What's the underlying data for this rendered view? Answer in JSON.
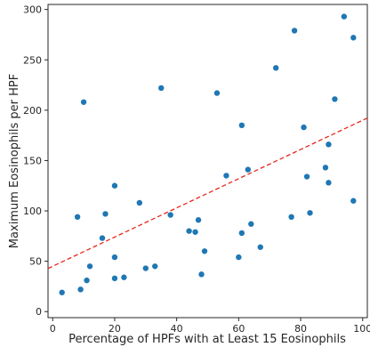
{
  "chart_data": {
    "type": "scatter",
    "title": "",
    "xlabel": "Percentage of HPFs with at Least 15 Eosinophils",
    "ylabel": "Maximum Eosinophils per HPF",
    "xlim": [
      -1.5,
      101.5
    ],
    "ylim": [
      -6,
      305
    ],
    "xticks": [
      0,
      20,
      40,
      60,
      80,
      100
    ],
    "yticks": [
      0,
      50,
      100,
      150,
      200,
      250,
      300
    ],
    "grid": false,
    "legend": null,
    "point_color": "#1f77b4",
    "trendline": {
      "slope": 1.45,
      "intercept": 45,
      "color": "#e8261b",
      "style": "dashed"
    },
    "points": [
      {
        "x": 3,
        "y": 19
      },
      {
        "x": 8,
        "y": 94
      },
      {
        "x": 9,
        "y": 22
      },
      {
        "x": 10,
        "y": 208
      },
      {
        "x": 11,
        "y": 31
      },
      {
        "x": 12,
        "y": 45
      },
      {
        "x": 16,
        "y": 73
      },
      {
        "x": 17,
        "y": 97
      },
      {
        "x": 20,
        "y": 33
      },
      {
        "x": 20,
        "y": 125
      },
      {
        "x": 20,
        "y": 54
      },
      {
        "x": 23,
        "y": 34
      },
      {
        "x": 28,
        "y": 108
      },
      {
        "x": 30,
        "y": 43
      },
      {
        "x": 33,
        "y": 45
      },
      {
        "x": 35,
        "y": 222
      },
      {
        "x": 38,
        "y": 96
      },
      {
        "x": 44,
        "y": 80
      },
      {
        "x": 46,
        "y": 79
      },
      {
        "x": 47,
        "y": 91
      },
      {
        "x": 48,
        "y": 37
      },
      {
        "x": 49,
        "y": 60
      },
      {
        "x": 53,
        "y": 217
      },
      {
        "x": 56,
        "y": 135
      },
      {
        "x": 60,
        "y": 54
      },
      {
        "x": 61,
        "y": 78
      },
      {
        "x": 61,
        "y": 185
      },
      {
        "x": 63,
        "y": 141
      },
      {
        "x": 64,
        "y": 87
      },
      {
        "x": 67,
        "y": 64
      },
      {
        "x": 72,
        "y": 242
      },
      {
        "x": 77,
        "y": 94
      },
      {
        "x": 78,
        "y": 279
      },
      {
        "x": 81,
        "y": 183
      },
      {
        "x": 82,
        "y": 134
      },
      {
        "x": 83,
        "y": 98
      },
      {
        "x": 88,
        "y": 143
      },
      {
        "x": 89,
        "y": 166
      },
      {
        "x": 89,
        "y": 128
      },
      {
        "x": 91,
        "y": 211
      },
      {
        "x": 94,
        "y": 293
      },
      {
        "x": 97,
        "y": 272
      },
      {
        "x": 97,
        "y": 110
      }
    ]
  }
}
